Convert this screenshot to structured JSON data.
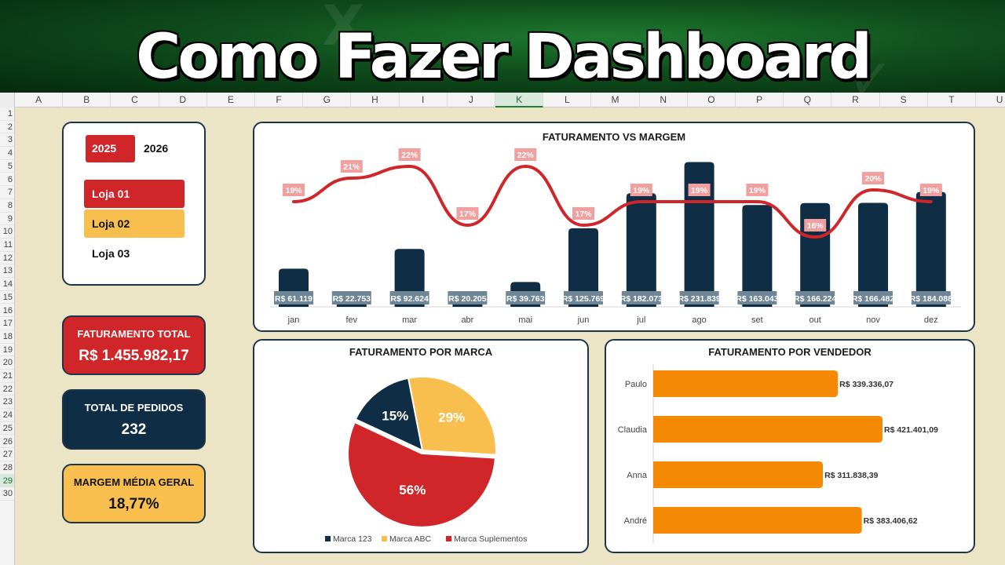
{
  "banner": {
    "title": "Como Fazer Dashboard"
  },
  "sheet": {
    "columns": [
      "A",
      "B",
      "C",
      "D",
      "E",
      "F",
      "G",
      "H",
      "I",
      "J",
      "K",
      "L",
      "M",
      "N",
      "O",
      "P",
      "Q",
      "R",
      "S",
      "T",
      "U"
    ],
    "selected_column": "K",
    "rows": [
      "1",
      "2",
      "3",
      "4",
      "5",
      "6",
      "7",
      "8",
      "9",
      "10",
      "11",
      "12",
      "13",
      "14",
      "15",
      "16",
      "17",
      "18",
      "19",
      "20",
      "21",
      "22",
      "23",
      "24",
      "25",
      "26",
      "27",
      "28",
      "29",
      "30"
    ],
    "selected_row": "29"
  },
  "filters": {
    "years": [
      {
        "label": "2025",
        "selected": true
      },
      {
        "label": "2026",
        "selected": false
      }
    ],
    "stores": [
      {
        "label": "Loja 01",
        "color": "#d0262a"
      },
      {
        "label": "Loja 02",
        "color": "#f8bf4f"
      },
      {
        "label": "Loja 03",
        "color": ""
      }
    ]
  },
  "kpis": [
    {
      "label": "FATURAMENTO TOTAL",
      "value": "R$ 1.455.982,17",
      "bg": "#d0262a",
      "fg": "#ffffff"
    },
    {
      "label": "TOTAL DE PEDIDOS",
      "value": "232",
      "bg": "#0f2d45",
      "fg": "#ffffff"
    },
    {
      "label": "MARGEM MÉDIA GERAL",
      "value": "18,77%",
      "bg": "#f8bf4f",
      "fg": "#111111"
    }
  ],
  "chart_data": [
    {
      "type": "bar",
      "title": "FATURAMENTO VS MARGEM",
      "categories": [
        "jan",
        "fev",
        "mar",
        "abr",
        "mai",
        "jun",
        "jul",
        "ago",
        "set",
        "out",
        "nov",
        "dez"
      ],
      "series": [
        {
          "values": [
            61119,
            22753,
            92624,
            20205,
            39763,
            125769,
            182073,
            231839,
            163043,
            166224,
            166482,
            184088
          ],
          "labels": [
            "R$ 61.119",
            "R$ 22.753",
            "R$ 92.624",
            "R$ 20.205",
            "R$ 39.763",
            "R$ 125.769",
            "R$ 182.073",
            "R$ 231.839",
            "R$ 163.043",
            "R$ 166.224",
            "R$ 166.482",
            "R$ 184.088"
          ],
          "color": "#0f2d45"
        },
        {
          "values": [
            19,
            21,
            22,
            17,
            22,
            17,
            19,
            19,
            19,
            16,
            20,
            19
          ],
          "labels": [
            "19%",
            "21%",
            "22%",
            "17%",
            "22%",
            "17%",
            "19%",
            "19%",
            "19%",
            "16%",
            "20%",
            "19%"
          ],
          "color": "#d0262a"
        }
      ]
    },
    {
      "type": "pie",
      "title": "FATURAMENTO POR MARCA",
      "categories": [
        "Marca 123",
        "Marca ABC",
        "Marca Suplementos"
      ],
      "values": [
        15,
        29,
        56
      ],
      "labels": [
        "15%",
        "29%",
        "56%"
      ],
      "colors": [
        "#0f2d45",
        "#f8bf4f",
        "#d0262a"
      ],
      "legend": "bottom"
    },
    {
      "type": "bar",
      "title": "FATURAMENTO POR VENDEDOR",
      "categories": [
        "Paulo",
        "Claudia",
        "Anna",
        "André"
      ],
      "values": [
        339336.07,
        421401.09,
        311838.39,
        383406.62
      ],
      "labels": [
        "R$ 339.336,07",
        "R$ 421.401,09",
        "R$ 311.838,39",
        "R$ 383.406,62"
      ],
      "color": "#f58a07",
      "orientation": "horizontal"
    }
  ]
}
